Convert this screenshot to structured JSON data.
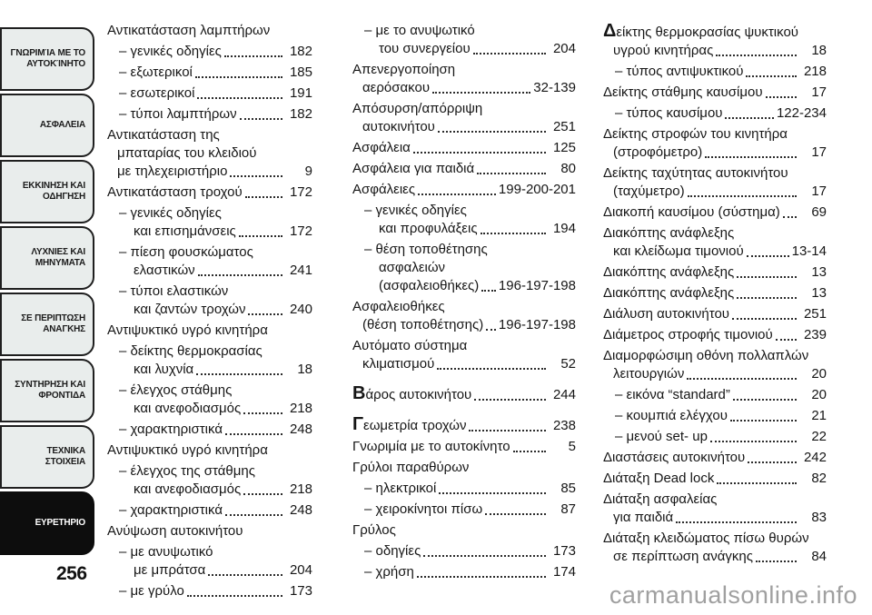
{
  "page": {
    "number": "256",
    "watermark": "carmanualsonline.info"
  },
  "colors": {
    "tab_bg": "#e9edec",
    "tab_active_bg": "#0d0d0d",
    "tab_border": "#1f1f1f",
    "text": "#161616",
    "watermark": "#a0a0a0"
  },
  "sidebar": {
    "tabs": [
      {
        "label": "ΓΝΩΡΙΜΊΑ ΜΕ ΤΟ ΑΥΤΟΚΊΝΗΤΟ",
        "active": false
      },
      {
        "label": "ΑΣΦΑΛΕΙΑ",
        "active": false
      },
      {
        "label": "ΕΚΚΙΝΗΣΗ ΚΑΙ ΟΔΗΓΗΣΗ",
        "active": false
      },
      {
        "label": "ΛΥΧΝΙΕΣ ΚΑΙ ΜΗΝΥΜΑΤΑ",
        "active": false
      },
      {
        "label": "ΣΕ ΠΕΡΙΠΤΩΣΗ ΑΝΑΓΚΗΣ",
        "active": false
      },
      {
        "label": "ΣΥΝΤΗΡΗΣΗ ΚΑΙ ΦΡΟΝΤΙΔΑ",
        "active": false
      },
      {
        "label": "ΤΕΧΝΙΚΑ ΣΤΟΙΧΕΙΑ",
        "active": false
      },
      {
        "label": "ΕΥΡΕΤΗΡΙΟ",
        "active": true
      }
    ]
  },
  "index": {
    "columns": [
      {
        "entries": [
          {
            "sub": false,
            "lines": [
              "Αντικατάσταση λαμπτήρων"
            ],
            "page": null
          },
          {
            "sub": true,
            "lines": [
              "– γενικές οδηγίες"
            ],
            "page": "182"
          },
          {
            "sub": true,
            "lines": [
              "– εξωτερικοί"
            ],
            "page": "185"
          },
          {
            "sub": true,
            "lines": [
              "– εσωτερικοί"
            ],
            "page": "191"
          },
          {
            "sub": true,
            "lines": [
              "– τύποι λαμπτήρων"
            ],
            "page": "182"
          },
          {
            "sub": false,
            "lines": [
              "Αντικατάσταση της",
              "μπαταρίας του κλειδιού",
              "με τηλεχειριστήριο"
            ],
            "page": "9"
          },
          {
            "sub": false,
            "lines": [
              "Αντικατάσταση τροχού"
            ],
            "page": "172"
          },
          {
            "sub": true,
            "lines": [
              "– γενικές οδηγίες",
              "και επισημάνσεις"
            ],
            "page": "172"
          },
          {
            "sub": true,
            "lines": [
              "– πίεση φουσκώματος",
              "ελαστικών"
            ],
            "page": "241"
          },
          {
            "sub": true,
            "lines": [
              "– τύποι ελαστικών",
              "και ζαντών τροχών"
            ],
            "page": "240"
          },
          {
            "sub": false,
            "lines": [
              "Αντιψυκτικό υγρό κινητήρα"
            ],
            "page": null
          },
          {
            "sub": true,
            "lines": [
              "– δείκτης θερμοκρασίας",
              "και λυχνία"
            ],
            "page": "18"
          },
          {
            "sub": true,
            "lines": [
              "– έλεγχος στάθμης",
              "και ανεφοδιασμός"
            ],
            "page": "218"
          },
          {
            "sub": true,
            "lines": [
              "– χαρακτηριστικά"
            ],
            "page": "248"
          },
          {
            "sub": false,
            "lines": [
              "Αντιψυκτικό υγρό κινητήρα"
            ],
            "page": null
          },
          {
            "sub": true,
            "lines": [
              "– έλεγχος της στάθμης",
              "και ανεφοδιασμός"
            ],
            "page": "218"
          },
          {
            "sub": true,
            "lines": [
              "– χαρακτηριστικά"
            ],
            "page": "248"
          },
          {
            "sub": false,
            "lines": [
              "Ανύψωση αυτοκινήτου"
            ],
            "page": null
          },
          {
            "sub": true,
            "lines": [
              "– με ανυψωτικό",
              "με μπράτσα"
            ],
            "page": "204"
          },
          {
            "sub": true,
            "lines": [
              "– με γρύλο"
            ],
            "page": "173"
          }
        ]
      },
      {
        "entries": [
          {
            "sub": true,
            "lines": [
              "– με το ανυψωτικό",
              "του συνεργείου"
            ],
            "page": "204"
          },
          {
            "sub": false,
            "lines": [
              "Απενεργοποίηση",
              "αερόσακου"
            ],
            "page": "32-139"
          },
          {
            "sub": false,
            "lines": [
              "Απόσυρση/απόρριψη",
              "αυτοκινήτου"
            ],
            "page": "251"
          },
          {
            "sub": false,
            "lines": [
              "Ασφάλεια"
            ],
            "page": "125"
          },
          {
            "sub": false,
            "lines": [
              "Ασφάλεια για παιδιά"
            ],
            "page": "80"
          },
          {
            "sub": false,
            "lines": [
              "Ασφάλειες"
            ],
            "page": "199-200-201"
          },
          {
            "sub": true,
            "lines": [
              "– γενικές οδηγίες",
              "και προφυλάξεις"
            ],
            "page": "194"
          },
          {
            "sub": true,
            "lines": [
              "– θέση τοποθέτησης",
              "ασφαλειών",
              "(ασφαλειοθήκες)"
            ],
            "page": "196-197-198"
          },
          {
            "sub": false,
            "lines": [
              "Ασφαλειοθήκες",
              "(θέση τοποθέτησης)"
            ],
            "page": "196-197-198"
          },
          {
            "sub": false,
            "lines": [
              "Αυτόματο σύστημα",
              "κλιματισμού"
            ],
            "page": "52"
          },
          {
            "sub": false,
            "lead": true,
            "gap": true,
            "lines": [
              "Βάρος αυτοκινήτου"
            ],
            "page": "244"
          },
          {
            "sub": false,
            "lead": true,
            "gap": true,
            "lines": [
              "Γεωμετρία τροχών"
            ],
            "page": "238"
          },
          {
            "sub": false,
            "lines": [
              "Γνωριμία με το αυτοκίνητο"
            ],
            "page": "5"
          },
          {
            "sub": false,
            "lines": [
              "Γρύλοι παραθύρων"
            ],
            "page": null
          },
          {
            "sub": true,
            "lines": [
              "– ηλεκτρικοί"
            ],
            "page": "85"
          },
          {
            "sub": true,
            "lines": [
              "– χειροκίνητοι πίσω"
            ],
            "page": "87"
          },
          {
            "sub": false,
            "lines": [
              "Γρύλος"
            ],
            "page": null
          },
          {
            "sub": true,
            "lines": [
              "– οδηγίες"
            ],
            "page": "173"
          },
          {
            "sub": true,
            "lines": [
              "– χρήση"
            ],
            "page": "174"
          }
        ]
      },
      {
        "entries": [
          {
            "sub": false,
            "lead": true,
            "lines": [
              "Δείκτης θερμοκρασίας ψυκτικού",
              "υγρού κινητήρας"
            ],
            "page": "18"
          },
          {
            "sub": true,
            "lines": [
              "– τύπος αντιψυκτικού"
            ],
            "page": "218"
          },
          {
            "sub": false,
            "lines": [
              "Δείκτης στάθμης καυσίμου"
            ],
            "page": "17"
          },
          {
            "sub": true,
            "lines": [
              "– τύπος καυσίμου"
            ],
            "page": "122-234"
          },
          {
            "sub": false,
            "lines": [
              "Δείκτης στροφών του κινητήρα",
              "(στροφόμετρο)"
            ],
            "page": "17"
          },
          {
            "sub": false,
            "lines": [
              "Δείκτης ταχύτητας αυτοκινήτου",
              "(ταχύμετρο)"
            ],
            "page": "17"
          },
          {
            "sub": false,
            "lines": [
              "Διακοπή καυσίμου (σύστημα)"
            ],
            "page": "69"
          },
          {
            "sub": false,
            "lines": [
              "Διακόπτης ανάφλεξης",
              "και κλείδωμα τιμονιού"
            ],
            "page": "13-14"
          },
          {
            "sub": false,
            "lines": [
              "Διακόπτης ανάφλεξης"
            ],
            "page": "13"
          },
          {
            "sub": false,
            "lines": [
              "Διακόπτης ανάφλεξης"
            ],
            "page": "13"
          },
          {
            "sub": false,
            "lines": [
              "Διάλυση αυτοκινήτου"
            ],
            "page": "251"
          },
          {
            "sub": false,
            "lines": [
              "Διάμετρος στροφής τιμονιού"
            ],
            "page": "239"
          },
          {
            "sub": false,
            "lines": [
              "Διαμορφώσιμη οθόνη πολλαπλών",
              "λειτουργιών"
            ],
            "page": "20"
          },
          {
            "sub": true,
            "lines": [
              "– εικόνα “standard”"
            ],
            "page": "20"
          },
          {
            "sub": true,
            "lines": [
              "– κουμπιά ελέγχου"
            ],
            "page": "21"
          },
          {
            "sub": true,
            "lines": [
              "– μενού set- up"
            ],
            "page": "22"
          },
          {
            "sub": false,
            "lines": [
              "Διαστάσεις αυτοκινήτου"
            ],
            "page": "242"
          },
          {
            "sub": false,
            "lines": [
              "Διάταξη Dead lock"
            ],
            "page": "82"
          },
          {
            "sub": false,
            "lines": [
              "Διάταξη ασφαλείας",
              "για παιδιά"
            ],
            "page": "83"
          },
          {
            "sub": false,
            "lines": [
              "Διάταξη κλειδώματος πίσω θυρών",
              "σε περίπτωση ανάγκης"
            ],
            "page": "84"
          }
        ]
      }
    ]
  }
}
